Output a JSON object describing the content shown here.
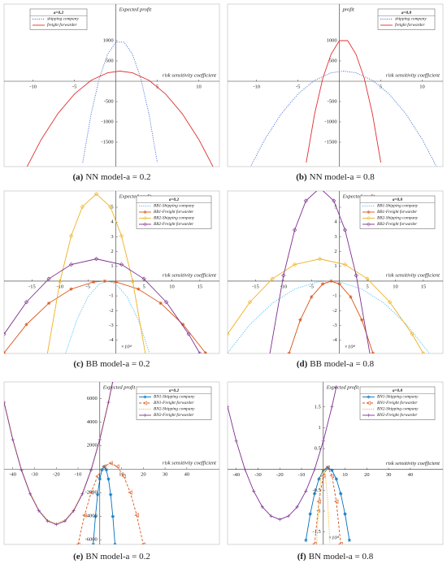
{
  "chart_data": [
    {
      "type": "line",
      "caption_label": "(a)",
      "caption": "NN model-a = 0.2",
      "legend_title": "a=0.2",
      "legend": "upper left",
      "ylabel": "Expected profit",
      "xlabel": "risk sensitivity coefficient",
      "xlim": [
        -13.5,
        12.5
      ],
      "ylim": [
        -2100,
        1900
      ],
      "xticks": [
        -10,
        -5,
        5,
        10
      ],
      "yticks": [
        -1500,
        -1000,
        -500,
        500,
        1000
      ],
      "series": [
        {
          "name": "shipping company",
          "color": "#4a6fd6",
          "dash": "dotted",
          "marker": "none",
          "x": [
            -4,
            -3,
            -2,
            -1,
            0,
            1,
            2,
            3,
            4,
            5
          ],
          "values": [
            -2000,
            -813,
            75,
            667,
            963,
            963,
            667,
            75,
            -813,
            -2000
          ]
        },
        {
          "name": "freight forwarder",
          "color": "#e03030",
          "dash": "solid",
          "marker": "none",
          "x": [
            -11,
            -9,
            -7,
            -5,
            -3,
            -1,
            0.5,
            2,
            4,
            6,
            8,
            10,
            12
          ],
          "values": [
            -2210,
            -1429,
            -796,
            -313,
            22,
            208,
            250,
            208,
            22,
            -313,
            -796,
            -1429,
            -2210
          ]
        }
      ]
    },
    {
      "type": "line",
      "caption_label": "(b)",
      "caption": "NN model-a = 0.8",
      "legend_title": "a=0.8",
      "legend": "upper right",
      "ylabel": "profit",
      "xlabel": "risk sensitivity coefficient",
      "xlim": [
        -13.5,
        12.5
      ],
      "ylim": [
        -2100,
        1900
      ],
      "xticks": [
        -10,
        -5,
        5,
        10
      ],
      "yticks": [
        -1500,
        -1000,
        -500,
        500,
        1000
      ],
      "series": [
        {
          "name": "shipping company",
          "color": "#4a6fd6",
          "dash": "dotted",
          "marker": "none",
          "x": [
            -11,
            -9,
            -7,
            -5,
            -3,
            -1,
            0.5,
            2,
            4,
            6,
            8,
            10,
            12
          ],
          "values": [
            -2210,
            -1429,
            -796,
            -313,
            22,
            208,
            250,
            208,
            22,
            -313,
            -796,
            -1429,
            -2210
          ]
        },
        {
          "name": "freight forwarder",
          "color": "#e03030",
          "dash": "solid",
          "marker": "none",
          "x": [
            -4,
            -3,
            -2,
            -1,
            0,
            1,
            2,
            3,
            4,
            5
          ],
          "values": [
            -2000,
            -813,
            75,
            667,
            1000,
            1000,
            667,
            75,
            -813,
            -2000
          ]
        }
      ]
    },
    {
      "type": "line",
      "caption_label": "(c)",
      "caption": "BB model-a = 0.2",
      "legend_title": "a=0.2",
      "legend": "upper right",
      "ylabel": "Expected profit",
      "xlabel": "risk sensitivity coefficient",
      "annotation": "×10⁴",
      "xlim": [
        -20,
        18.5
      ],
      "ylim": [
        -4.9,
        6.1
      ],
      "xticks": [
        -15,
        -10,
        -5,
        5,
        10,
        15
      ],
      "yticks": [
        -4,
        -3,
        -2,
        -1,
        1,
        2,
        3,
        4,
        5
      ],
      "series": [
        {
          "name": "BB1-Shipping company",
          "color": "#4dbeee",
          "dash": "dotted",
          "marker": "none",
          "x": [
            -9,
            -7,
            -5,
            -3,
            -1.5,
            0,
            2,
            4,
            6
          ],
          "values": [
            -4.89,
            -2.63,
            -1.07,
            -0.2,
            0,
            -0.2,
            -1.07,
            -2.63,
            -4.89
          ]
        },
        {
          "name": "BB1-Freight forwarder",
          "color": "#d95319",
          "dash": "solid",
          "marker": "star",
          "x": [
            -20,
            -16,
            -12,
            -8,
            -4,
            -2,
            0,
            4,
            8,
            12,
            16
          ],
          "values": [
            -4.86,
            -2.94,
            -1.5,
            -0.54,
            -0.06,
            0,
            -0.06,
            -0.54,
            -1.5,
            -2.94,
            -4.86
          ]
        },
        {
          "name": "BB2-Shipping company",
          "color": "#edb120",
          "dash": "solid",
          "marker": "diamond",
          "x": [
            -12.5,
            -10,
            -8,
            -6,
            -3.5,
            -1,
            1,
            3,
            5.5
          ],
          "values": [
            -5.44,
            -0.02,
            3.06,
            5.03,
            5.9,
            5.03,
            3.06,
            -0.02,
            -5.44
          ]
        },
        {
          "name": "BB2-Freight forwarder",
          "color": "#7e2f8e",
          "dash": "solid",
          "marker": "diamond",
          "x": [
            -20,
            -16,
            -12,
            -8,
            -3.5,
            1,
            5,
            9,
            13,
            15
          ],
          "values": [
            -3.59,
            -1.42,
            0.15,
            1.12,
            1.5,
            1.12,
            0.15,
            -1.42,
            -3.59,
            -4.9
          ]
        }
      ]
    },
    {
      "type": "line",
      "caption_label": "(d)",
      "caption": "BB model-a = 0.8",
      "legend_title": "a=0.8",
      "legend": "upper right",
      "ylabel": "Expected profit",
      "xlabel": "risk sensitivity coefficient",
      "annotation": "×10⁴",
      "xlim": [
        -20,
        18.5
      ],
      "ylim": [
        -4.9,
        6.1
      ],
      "xticks": [
        -15,
        -10,
        -5,
        5,
        10,
        15
      ],
      "yticks": [
        -4,
        -3,
        -2,
        -1,
        1,
        2,
        3,
        4,
        5
      ],
      "series": [
        {
          "name": "BB1-Shipping company",
          "color": "#4dbeee",
          "dash": "dotted",
          "marker": "none",
          "x": [
            -20,
            -16,
            -12,
            -8,
            -4,
            -2,
            0,
            4,
            8,
            12,
            16
          ],
          "values": [
            -4.86,
            -2.94,
            -1.5,
            -0.54,
            -0.06,
            0,
            -0.06,
            -0.54,
            -1.5,
            -2.94,
            -4.86
          ]
        },
        {
          "name": "BB1-Freight forwarder",
          "color": "#d95319",
          "dash": "solid",
          "marker": "star",
          "x": [
            -9,
            -7,
            -5,
            -3,
            -1.5,
            0,
            2,
            4,
            6
          ],
          "values": [
            -4.89,
            -2.63,
            -1.07,
            -0.2,
            0,
            -0.2,
            -1.07,
            -2.63,
            -4.89
          ]
        },
        {
          "name": "BB2-Shipping company",
          "color": "#edb120",
          "dash": "solid",
          "marker": "diamond",
          "x": [
            -20,
            -16,
            -12,
            -8,
            -3.5,
            1,
            5,
            9,
            13,
            15
          ],
          "values": [
            -3.59,
            -1.42,
            0.15,
            1.12,
            1.5,
            1.12,
            0.15,
            -1.42,
            -3.59,
            -4.9
          ]
        },
        {
          "name": "BB2-Freight forwarder",
          "color": "#7e2f8e",
          "dash": "solid",
          "marker": "diamond",
          "x": [
            -12.5,
            -10,
            -8,
            -6,
            -3.5,
            -1,
            1,
            3,
            5.5
          ],
          "values": [
            -5.04,
            0.38,
            3.46,
            5.43,
            6.3,
            5.43,
            3.46,
            0.38,
            -5.04
          ]
        }
      ]
    },
    {
      "type": "line",
      "caption_label": "(e)",
      "caption": "BN model-a = 0.2",
      "legend_title": "a=0.2",
      "legend": "upper right",
      "ylabel": "Expected profit",
      "xlabel": "risk sensitivity coefficient",
      "xlim": [
        -44,
        55
      ],
      "ylim": [
        -6400,
        7400
      ],
      "xticks": [
        -40,
        -30,
        -20,
        -10,
        10,
        20,
        30,
        40
      ],
      "yticks": [
        -6000,
        -4000,
        -2000,
        2000,
        4000,
        6000
      ],
      "series": [
        {
          "name": "BN1-Shipping company",
          "color": "#0072bd",
          "dash": "solid",
          "marker": "star",
          "x": [
            -3,
            -2,
            -1,
            0,
            1,
            2,
            3,
            4,
            5,
            6,
            7
          ],
          "values": [
            -6400,
            -4024,
            -2176,
            -856,
            -64,
            200,
            -64,
            -856,
            -2176,
            -4024,
            -6400
          ]
        },
        {
          "name": "BN1-Freight forwarder",
          "color": "#d95319",
          "dash": "dashed",
          "marker": "triangle",
          "x": [
            -10,
            -7,
            -4,
            -1,
            2,
            5,
            8,
            11,
            14,
            17,
            20
          ],
          "values": [
            -6408,
            -3921,
            -1987,
            -605,
            224,
            500,
            224,
            -605,
            -1987,
            -3921,
            -6408
          ]
        },
        {
          "name": "BN2-Shipping company",
          "color": "#edb120",
          "dash": "dotted",
          "marker": "none",
          "x": [
            -44,
            -40,
            -36,
            -32,
            -28,
            -24,
            -20,
            -16,
            -12,
            -8,
            -4,
            0,
            4,
            6
          ],
          "values": [
            5768,
            2600,
            8,
            -2008,
            -3448,
            -4312,
            -4600,
            -4312,
            -3448,
            -2008,
            8,
            2600,
            5768,
            7568
          ]
        },
        {
          "name": "BN2-Freight forwarder",
          "color": "#7e2f8e",
          "dash": "solid",
          "marker": "plus",
          "x": [
            -44,
            -40,
            -36,
            -32,
            -28,
            -24,
            -20,
            -16,
            -12,
            -8,
            -4,
            0,
            4,
            6
          ],
          "values": [
            5668,
            2500,
            -92,
            -2108,
            -3548,
            -4412,
            -4700,
            -4412,
            -3548,
            -2108,
            -92,
            2500,
            5668,
            7468
          ]
        }
      ]
    },
    {
      "type": "line",
      "caption_label": "(f)",
      "caption": "BN model-a = 0.8",
      "legend_title": "a=0.8",
      "legend": "upper right",
      "ylabel": "Expected profit",
      "xlabel": "risk sensitivity coefficient",
      "annotation": "×10⁴",
      "xlim": [
        -44,
        55
      ],
      "ylim": [
        -1.8,
        2.1
      ],
      "xticks": [
        -40,
        -30,
        -20,
        -10,
        10,
        20,
        30,
        40
      ],
      "yticks": [
        -1.5,
        -1,
        -0.5,
        0.5,
        1,
        1.5
      ],
      "series": [
        {
          "name": "BN1-Shipping company",
          "color": "#0072bd",
          "dash": "solid",
          "marker": "star",
          "x": [
            -8,
            -6,
            -4,
            -2,
            0,
            2,
            4,
            6,
            8,
            10,
            12
          ],
          "values": [
            -1.7,
            -1.07,
            -0.58,
            -0.23,
            -0.02,
            0.05,
            -0.02,
            -0.23,
            -0.58,
            -1.07,
            -1.7
          ]
        },
        {
          "name": "BN1-Freight forwarder",
          "color": "#d95319",
          "dash": "dashed",
          "marker": "triangle",
          "x": [
            -4,
            -2,
            0,
            2,
            4,
            6,
            8
          ],
          "values": [
            -1.79,
            -0.77,
            -0.15,
            0.05,
            -0.15,
            -0.77,
            -1.79
          ]
        },
        {
          "name": "BN2-Shipping company",
          "color": "#edb120",
          "dash": "dotted",
          "marker": "none",
          "x": [
            -3,
            -2,
            -1,
            0,
            1,
            2,
            3
          ],
          "values": [
            -1.75,
            -0.75,
            -0.15,
            0.05,
            -0.15,
            -0.75,
            -1.75
          ]
        },
        {
          "name": "BN2-Freight forwarder",
          "color": "#7e2f8e",
          "dash": "solid",
          "marker": "plus",
          "x": [
            -44,
            -40,
            -36,
            -32,
            -28,
            -24,
            -20,
            -16,
            -12,
            -8,
            -4,
            0,
            4,
            6
          ],
          "values": [
            1.51,
            0.68,
            0,
            -0.52,
            -0.9,
            -1.12,
            -1.2,
            -1.12,
            -0.9,
            -0.52,
            0,
            0.68,
            1.51,
            1.98
          ]
        }
      ]
    }
  ]
}
